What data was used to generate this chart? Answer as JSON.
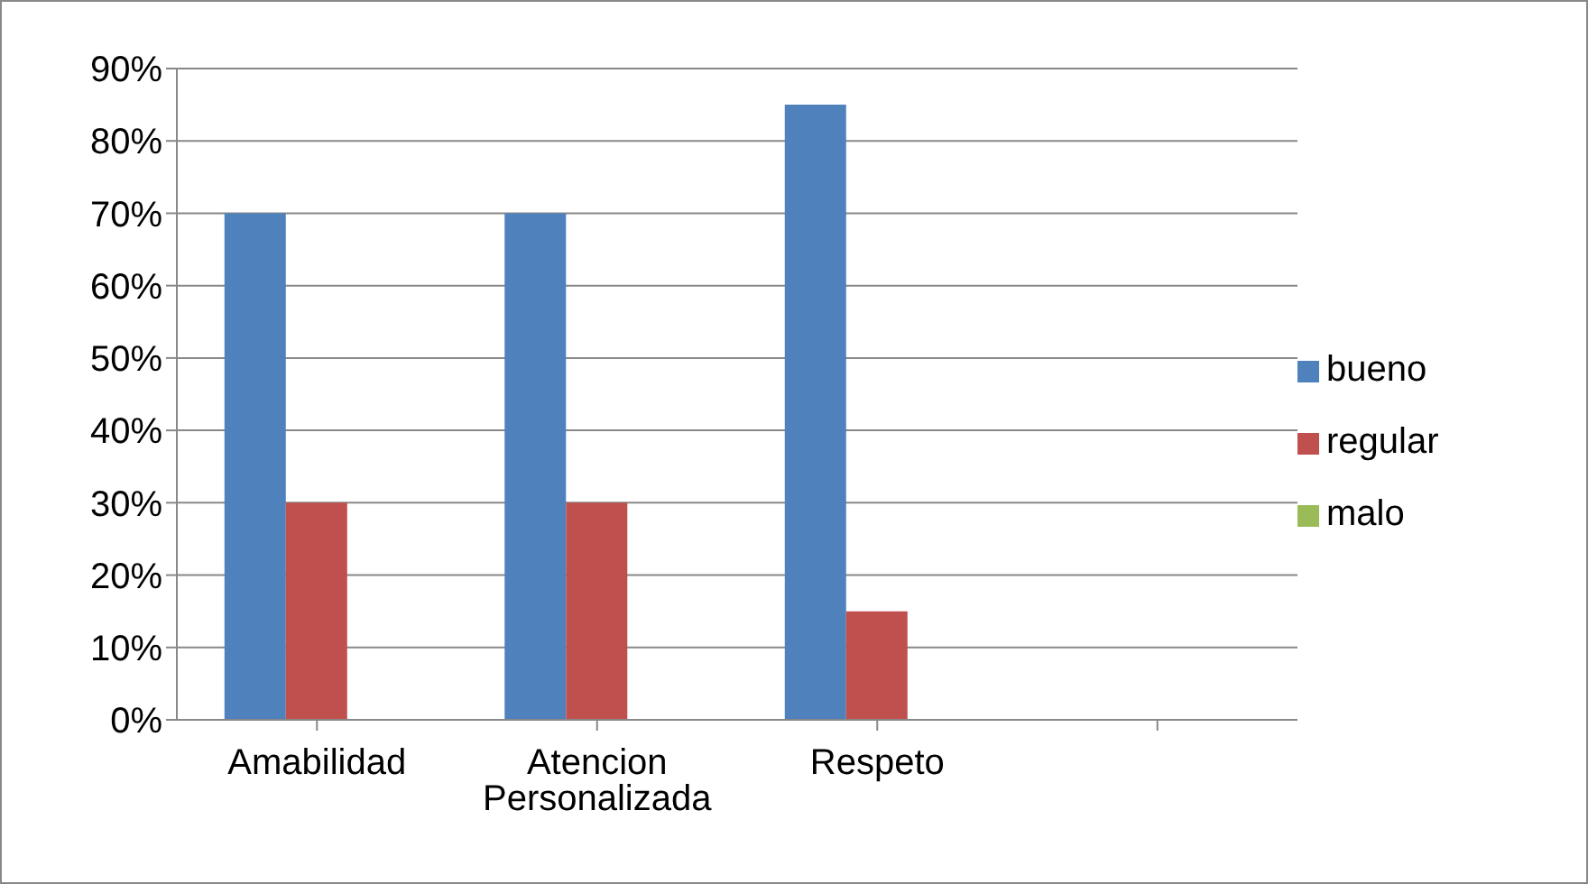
{
  "chart_data": {
    "type": "bar",
    "categories": [
      "Amabilidad",
      "Atencion Personalizada",
      "Respeto",
      null
    ],
    "series": [
      {
        "name": "bueno",
        "color": "#4f81bd",
        "values": [
          70,
          70,
          85,
          null
        ]
      },
      {
        "name": "regular",
        "color": "#c0504d",
        "values": [
          30,
          30,
          15,
          null
        ]
      },
      {
        "name": "malo",
        "color": "#9bbb59",
        "values": [
          0,
          0,
          0,
          null
        ]
      }
    ],
    "ylim": [
      0,
      90
    ],
    "yticks": [
      {
        "value": 0,
        "label": "0%"
      },
      {
        "value": 10,
        "label": "10%"
      },
      {
        "value": 20,
        "label": "20%"
      },
      {
        "value": 30,
        "label": "30%"
      },
      {
        "value": 40,
        "label": "40%"
      },
      {
        "value": 50,
        "label": "50%"
      },
      {
        "value": 60,
        "label": "60%"
      },
      {
        "value": 70,
        "label": "70%"
      },
      {
        "value": 80,
        "label": "80%"
      },
      {
        "value": 90,
        "label": "90%"
      }
    ],
    "grid": "y",
    "legend": "right"
  }
}
